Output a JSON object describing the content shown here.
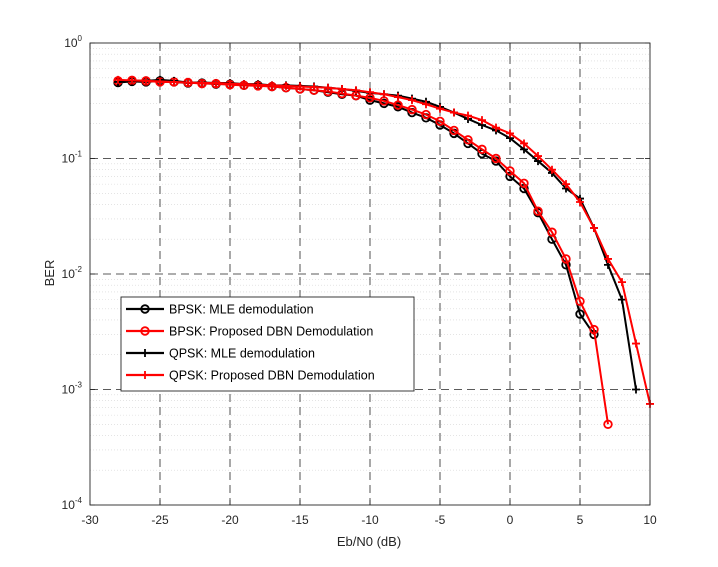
{
  "chart_data": {
    "type": "line",
    "xlabel": "Eb/N0 (dB)",
    "ylabel": "BER",
    "xlim": [
      -30,
      10
    ],
    "ylim": [
      0.0001,
      1
    ],
    "yscale": "log",
    "grid": true,
    "legend_position": "lower-left",
    "x_ticks": [
      -30,
      -25,
      -20,
      -15,
      -10,
      -5,
      0,
      5,
      10
    ],
    "y_ticks": [
      {
        "value": 1,
        "base": "10",
        "exp": "0"
      },
      {
        "value": 0.1,
        "base": "10",
        "exp": "-1"
      },
      {
        "value": 0.01,
        "base": "10",
        "exp": "-2"
      },
      {
        "value": 0.001,
        "base": "10",
        "exp": "-3"
      },
      {
        "value": 0.0001,
        "base": "10",
        "exp": "-4"
      }
    ],
    "series": [
      {
        "name": "BPSK: MLE demodulation",
        "color": "#000000",
        "marker": "circle",
        "x": [
          -28,
          -27,
          -26,
          -25,
          -24,
          -23,
          -22,
          -21,
          -20,
          -19,
          -18,
          -17,
          -16,
          -15,
          -14,
          -13,
          -12,
          -11,
          -10,
          -9,
          -8,
          -7,
          -6,
          -5,
          -4,
          -3,
          -2,
          -1,
          0,
          1,
          2,
          3,
          4,
          5,
          6
        ],
        "y": [
          0.455,
          0.465,
          0.46,
          0.47,
          0.46,
          0.45,
          0.45,
          0.44,
          0.44,
          0.43,
          0.43,
          0.42,
          0.41,
          0.4,
          0.39,
          0.375,
          0.36,
          0.35,
          0.32,
          0.3,
          0.28,
          0.25,
          0.225,
          0.195,
          0.165,
          0.135,
          0.11,
          0.095,
          0.07,
          0.055,
          0.034,
          0.02,
          0.012,
          0.0045,
          0.003
        ]
      },
      {
        "name": "BPSK: Proposed DBN Demodulation",
        "color": "#ff0000",
        "marker": "circle",
        "x": [
          -28,
          -27,
          -26,
          -25,
          -24,
          -23,
          -22,
          -21,
          -20,
          -19,
          -18,
          -17,
          -16,
          -15,
          -14,
          -13,
          -12,
          -11,
          -10,
          -9,
          -8,
          -7,
          -6,
          -5,
          -4,
          -3,
          -2,
          -1,
          0,
          1,
          2,
          3,
          4,
          5,
          6,
          7
        ],
        "y": [
          0.47,
          0.475,
          0.47,
          0.46,
          0.46,
          0.455,
          0.445,
          0.445,
          0.435,
          0.43,
          0.425,
          0.42,
          0.41,
          0.4,
          0.39,
          0.38,
          0.365,
          0.35,
          0.335,
          0.315,
          0.29,
          0.265,
          0.24,
          0.21,
          0.175,
          0.145,
          0.12,
          0.1,
          0.078,
          0.061,
          0.035,
          0.023,
          0.0135,
          0.0058,
          0.0033,
          0.0005
        ]
      },
      {
        "name": "QPSK: MLE demodulation",
        "color": "#000000",
        "marker": "plus",
        "x": [
          -28,
          -27,
          -26,
          -25,
          -24,
          -23,
          -22,
          -21,
          -20,
          -19,
          -18,
          -17,
          -16,
          -15,
          -14,
          -13,
          -12,
          -11,
          -10,
          -9,
          -8,
          -7,
          -6,
          -5,
          -4,
          -3,
          -2,
          -1,
          0,
          1,
          2,
          3,
          4,
          5,
          6,
          7,
          8,
          9
        ],
        "y": [
          0.46,
          0.47,
          0.47,
          0.48,
          0.47,
          0.455,
          0.455,
          0.45,
          0.45,
          0.44,
          0.44,
          0.43,
          0.43,
          0.425,
          0.42,
          0.41,
          0.4,
          0.385,
          0.37,
          0.36,
          0.35,
          0.33,
          0.31,
          0.28,
          0.25,
          0.22,
          0.195,
          0.175,
          0.15,
          0.12,
          0.095,
          0.075,
          0.055,
          0.045,
          0.025,
          0.012,
          0.006,
          0.001
        ]
      },
      {
        "name": "QPSK: Proposed DBN Demodulation",
        "color": "#ff0000",
        "marker": "plus",
        "x": [
          -28,
          -27,
          -26,
          -25,
          -24,
          -23,
          -22,
          -21,
          -20,
          -19,
          -18,
          -17,
          -16,
          -15,
          -14,
          -13,
          -12,
          -11,
          -10,
          -9,
          -8,
          -7,
          -6,
          -5,
          -4,
          -3,
          -2,
          -1,
          0,
          1,
          2,
          3,
          4,
          5,
          6,
          7,
          8,
          9,
          10
        ],
        "y": [
          0.48,
          0.475,
          0.47,
          0.465,
          0.46,
          0.455,
          0.45,
          0.45,
          0.445,
          0.44,
          0.435,
          0.43,
          0.425,
          0.42,
          0.415,
          0.41,
          0.4,
          0.39,
          0.375,
          0.36,
          0.34,
          0.32,
          0.295,
          0.27,
          0.25,
          0.235,
          0.215,
          0.185,
          0.165,
          0.135,
          0.105,
          0.08,
          0.06,
          0.042,
          0.025,
          0.0135,
          0.0085,
          0.0025,
          0.00075
        ]
      }
    ]
  }
}
